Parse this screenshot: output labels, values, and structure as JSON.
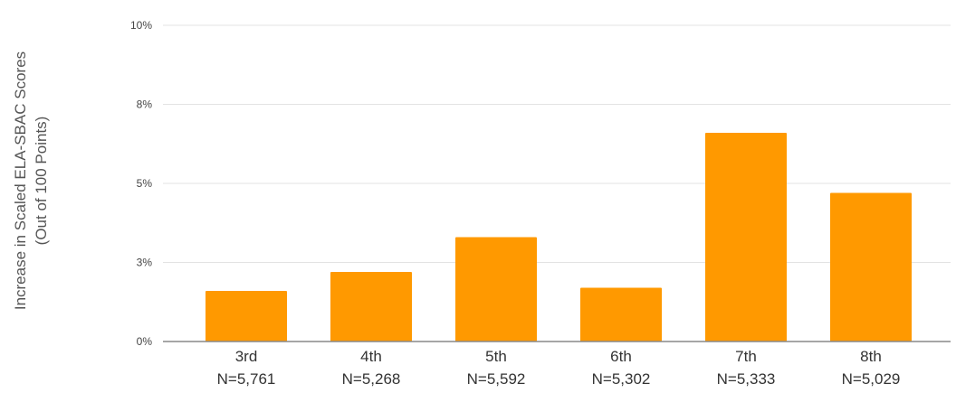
{
  "chart_data": {
    "type": "bar",
    "ylabel_lines": [
      "Increase in Scaled ELA-SBAC Scores",
      "(Out of 100 Points)"
    ],
    "categories": [
      "3rd",
      "4th",
      "5th",
      "6th",
      "7th",
      "8th"
    ],
    "sublabels": [
      "N=5,761",
      "N=5,268",
      "N=5,592",
      "N=5,302",
      "N=5,333",
      "N=5,029"
    ],
    "values": [
      1.6,
      2.2,
      3.3,
      1.7,
      6.6,
      4.7
    ],
    "ylim": [
      0,
      10
    ],
    "y_ticks": [
      {
        "value": 0,
        "label": "0%"
      },
      {
        "value": 2.5,
        "label": "3%"
      },
      {
        "value": 5,
        "label": "5%"
      },
      {
        "value": 7.5,
        "label": "8%"
      },
      {
        "value": 10,
        "label": "10%"
      }
    ],
    "grid": true,
    "bar_color": "#ff9900"
  }
}
